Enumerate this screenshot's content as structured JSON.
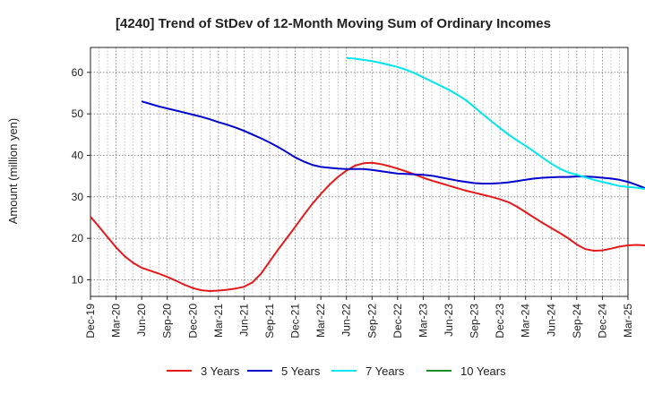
{
  "chart_data": {
    "type": "line",
    "title": "[4240]  Trend of StDev of 12-Month Moving Sum of Ordinary Incomes",
    "ylabel": "Amount (million yen)",
    "xlabel": "",
    "x_ticks": [
      "Dec-19",
      "Mar-20",
      "Jun-20",
      "Sep-20",
      "Dec-20",
      "Mar-21",
      "Jun-21",
      "Sep-21",
      "Dec-21",
      "Mar-22",
      "Jun-22",
      "Sep-22",
      "Dec-22",
      "Mar-23",
      "Jun-23",
      "Sep-23",
      "Dec-23",
      "Mar-24",
      "Jun-24",
      "Sep-24",
      "Dec-24",
      "Mar-25"
    ],
    "y_ticks": [
      10,
      20,
      30,
      40,
      50,
      60
    ],
    "ylim": [
      6,
      66
    ],
    "grid": true,
    "legend_position": "bottom",
    "series": [
      {
        "name": "3 Years",
        "color": "#e31a1c",
        "start_index": 0,
        "values": [
          25.2,
          22.8,
          20.3,
          17.8,
          15.7,
          14.1,
          12.9,
          12.2,
          11.5,
          10.7,
          9.8,
          8.8,
          8.0,
          7.5,
          7.3,
          7.4,
          7.6,
          7.9,
          8.3,
          9.4,
          11.5,
          14.4,
          17.3,
          20.0,
          22.8,
          25.6,
          28.3,
          30.7,
          32.9,
          34.8,
          36.3,
          37.5,
          38.1,
          38.2,
          37.9,
          37.4,
          36.8,
          36.1,
          35.4,
          34.6,
          33.9,
          33.3,
          32.7,
          32.1,
          31.5,
          31.0,
          30.5,
          30.0,
          29.4,
          28.7,
          27.6,
          26.3,
          25.0,
          23.7,
          22.5,
          21.3,
          20.0,
          18.5,
          17.4,
          17.0,
          17.1,
          17.5,
          18.0,
          18.3,
          18.4,
          18.3,
          17.8,
          16.9,
          16.2
        ]
      },
      {
        "name": "5 Years",
        "color": "#0000cc",
        "start_index": 6,
        "values": [
          53.0,
          52.4,
          51.8,
          51.3,
          50.8,
          50.3,
          49.8,
          49.3,
          48.7,
          48.0,
          47.4,
          46.7,
          45.9,
          45.0,
          44.1,
          43.1,
          42.0,
          40.8,
          39.5,
          38.5,
          37.7,
          37.2,
          37.0,
          36.8,
          36.7,
          36.7,
          36.7,
          36.5,
          36.2,
          35.9,
          35.6,
          35.5,
          35.4,
          35.3,
          35.1,
          34.7,
          34.3,
          33.9,
          33.6,
          33.3,
          33.2,
          33.2,
          33.3,
          33.5,
          33.8,
          34.1,
          34.4,
          34.6,
          34.7,
          34.8,
          34.8,
          34.9,
          34.9,
          34.8,
          34.6,
          34.4,
          34.1,
          33.6,
          32.9,
          32.1,
          31.3,
          30.6,
          29.9,
          29.3,
          28.5,
          27.8
        ]
      },
      {
        "name": "7 Years",
        "color": "#00e5ee",
        "start_index": 30,
        "values": [
          63.5,
          63.3,
          63.0,
          62.7,
          62.3,
          61.8,
          61.3,
          60.6,
          59.8,
          58.8,
          57.8,
          56.8,
          55.8,
          54.6,
          53.3,
          51.6,
          49.9,
          48.2,
          46.6,
          45.0,
          43.6,
          42.3,
          40.9,
          39.4,
          38.0,
          36.8,
          35.9,
          35.3,
          34.7,
          34.1,
          33.6,
          33.1,
          32.6,
          32.4,
          32.2,
          31.9
        ]
      },
      {
        "name": "10 Years",
        "color": "#228b22",
        "start_index": 0,
        "values": []
      }
    ]
  }
}
